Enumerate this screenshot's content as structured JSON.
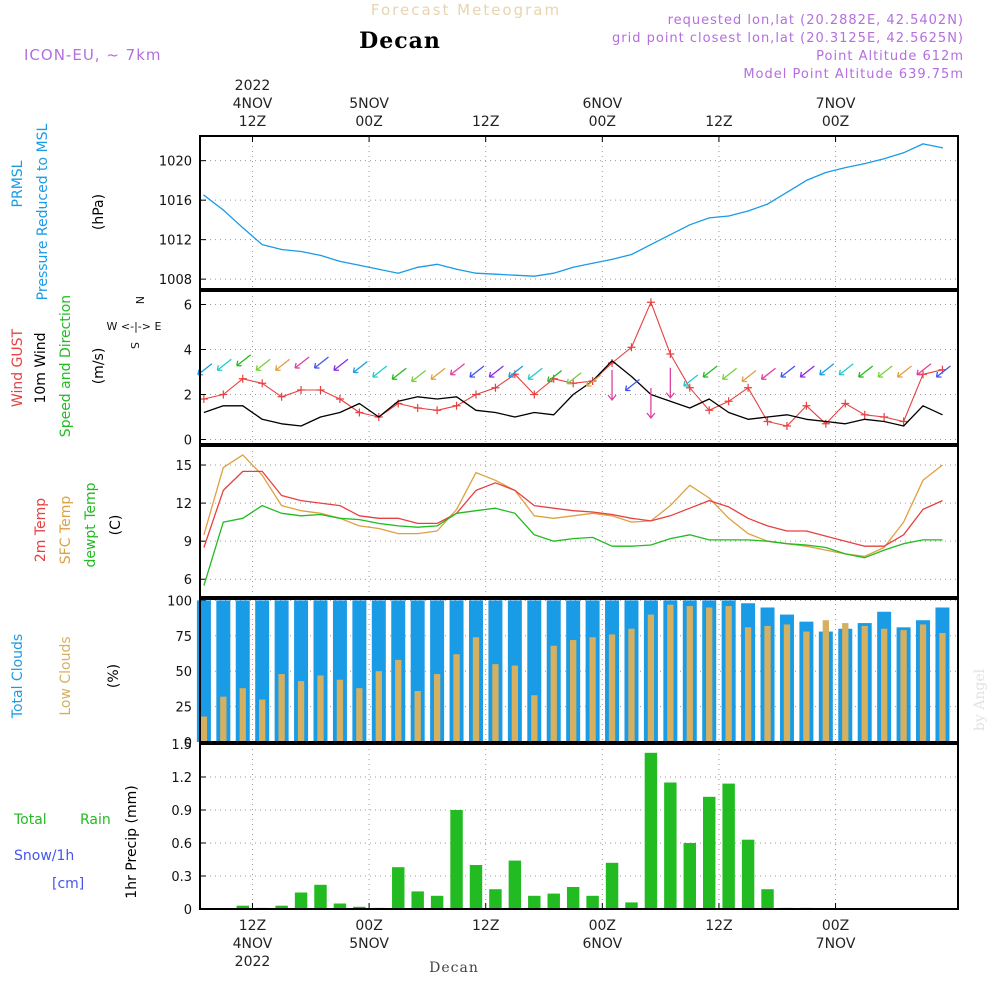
{
  "header": {
    "title": "Forecast Meteogram",
    "station": "Decan",
    "model": "ICON-EU, ~ 7km",
    "requested": "requested lon,lat (20.2882E, 42.5402N)",
    "grid_point": "grid point closest lon,lat (20.3125E, 42.5625N)",
    "point_altitude": "Point Altitude 612m",
    "model_altitude": "Model Point Altitude 639.75m"
  },
  "footer": {
    "station": "Decan",
    "credit": "by Angel"
  },
  "colors": {
    "pressure": "#1a9be6",
    "gust": "#e84040",
    "wind": "#000000",
    "wind_dir": "#22bb22",
    "temp2m": "#e84040",
    "sfctemp": "#dfa040",
    "dewpoint": "#22bb22",
    "total_clouds": "#1a9be6",
    "low_clouds": "#d4b060",
    "rain": "#22bb22",
    "snow": "#4455ee",
    "compass": "#b46ee0"
  },
  "time_axis": {
    "top": [
      {
        "x": -0.5,
        "lines": [
          "2022",
          "4NOV",
          "12Z"
        ]
      },
      {
        "x": 5.5,
        "lines": [
          "",
          "5NOV",
          "00Z"
        ]
      },
      {
        "x": 11.5,
        "lines": [
          "",
          "",
          "12Z"
        ]
      },
      {
        "x": 17.5,
        "lines": [
          "",
          "6NOV",
          "00Z"
        ]
      },
      {
        "x": 23.5,
        "lines": [
          "",
          "",
          "12Z"
        ]
      },
      {
        "x": 29.5,
        "lines": [
          "",
          "7NOV",
          "00Z"
        ]
      }
    ],
    "bottom": [
      {
        "x": -0.5,
        "lines": [
          "12Z",
          "4NOV",
          "2022"
        ]
      },
      {
        "x": 5.5,
        "lines": [
          "00Z",
          "5NOV",
          ""
        ]
      },
      {
        "x": 11.5,
        "lines": [
          "12Z",
          "",
          ""
        ]
      },
      {
        "x": 17.5,
        "lines": [
          "00Z",
          "6NOV",
          ""
        ]
      },
      {
        "x": 23.5,
        "lines": [
          "12Z",
          "",
          ""
        ]
      },
      {
        "x": 29.5,
        "lines": [
          "00Z",
          "7NOV",
          ""
        ]
      }
    ]
  },
  "labels": {
    "pressure": [
      "PRMSL",
      "Pressure Reduced to MSL",
      "(hPa)"
    ],
    "wind": [
      "Wind GUST",
      "10m Wind",
      "Speed and Direction",
      "(m/s)"
    ],
    "compass": [
      "N",
      "W <-|-> E",
      "S"
    ],
    "temp": [
      "2m Temp",
      "SFC Temp",
      "dewpt Temp",
      "(C)"
    ],
    "clouds": [
      "Total Clouds",
      "Low Clouds",
      "(%)"
    ],
    "precip": [
      "Total",
      "Rain",
      "Snow/1h",
      "[cm]",
      "1hr Precip (mm)"
    ]
  },
  "chart_data": [
    {
      "type": "line",
      "title": "PRMSL Pressure Reduced to MSL",
      "ylabel": "(hPa)",
      "ylim": [
        1007,
        1022.5
      ],
      "yticks": [
        1008,
        1012,
        1016,
        1020
      ],
      "x_units": "hours since 4NOV 12Z",
      "series": [
        {
          "name": "PRMSL",
          "x": [
            -3,
            -2,
            -1,
            0,
            1,
            2,
            3,
            4,
            5,
            6,
            7,
            8,
            9,
            10,
            11,
            12,
            13,
            14,
            15,
            16,
            17,
            18,
            19,
            20,
            21,
            22,
            23,
            24,
            25,
            26,
            27,
            28,
            29,
            30,
            31,
            32,
            33,
            34,
            35
          ],
          "values": [
            1016.5,
            1015.0,
            1013.2,
            1011.5,
            1011.0,
            1010.8,
            1010.4,
            1009.8,
            1009.4,
            1009.0,
            1008.6,
            1009.2,
            1009.5,
            1009.0,
            1008.6,
            1008.5,
            1008.4,
            1008.3,
            1008.6,
            1009.2,
            1009.6,
            1010.0,
            1010.5,
            1011.5,
            1012.5,
            1013.5,
            1014.2,
            1014.4,
            1014.9,
            1015.6,
            1016.8,
            1018.0,
            1018.8,
            1019.3,
            1019.7,
            1020.2,
            1020.8,
            1021.7,
            1021.3
          ]
        }
      ]
    },
    {
      "type": "line",
      "title": "Wind GUST / 10m Wind Speed and Direction",
      "ylabel": "(m/s)",
      "ylim": [
        -0.2,
        6.6
      ],
      "yticks": [
        0,
        2,
        4,
        6
      ],
      "x_units": "hours since 4NOV 12Z",
      "series": [
        {
          "name": "Wind GUST",
          "x": [
            -3,
            -2,
            -1,
            0,
            1,
            2,
            3,
            4,
            5,
            6,
            7,
            8,
            9,
            10,
            11,
            12,
            13,
            14,
            15,
            16,
            17,
            18,
            19,
            20,
            21,
            22,
            23,
            24,
            25,
            26,
            27,
            28,
            29,
            30,
            31,
            32,
            33,
            34,
            35
          ],
          "values": [
            1.8,
            2.0,
            2.7,
            2.5,
            1.9,
            2.2,
            2.2,
            1.8,
            1.2,
            1.0,
            1.6,
            1.4,
            1.3,
            1.5,
            2.0,
            2.3,
            2.9,
            2.0,
            2.7,
            2.5,
            2.6,
            3.4,
            4.1,
            6.1,
            3.8,
            2.3,
            1.3,
            1.7,
            2.3,
            0.8,
            0.6,
            1.5,
            0.7,
            1.6,
            1.1,
            1.0,
            0.8,
            2.9,
            3.1
          ]
        },
        {
          "name": "10m Wind",
          "x": [
            -3,
            -2,
            -1,
            0,
            1,
            2,
            3,
            4,
            5,
            6,
            7,
            8,
            9,
            10,
            11,
            12,
            13,
            14,
            15,
            16,
            17,
            18,
            19,
            20,
            21,
            22,
            23,
            24,
            25,
            26,
            27,
            28,
            29,
            30,
            31,
            32,
            33,
            34,
            35
          ],
          "values": [
            1.2,
            1.5,
            1.5,
            0.9,
            0.7,
            0.6,
            1.0,
            1.2,
            1.6,
            1.0,
            1.7,
            1.9,
            1.8,
            1.9,
            1.3,
            1.2,
            1.0,
            1.2,
            1.1,
            2.0,
            2.6,
            3.5,
            2.8,
            2.0,
            1.7,
            1.4,
            1.8,
            1.2,
            0.9,
            1.0,
            1.1,
            0.9,
            0.8,
            0.7,
            0.9,
            0.8,
            0.6,
            1.5,
            1.1
          ]
        },
        {
          "name": "Direction",
          "x": [
            -3,
            -2,
            -1,
            0,
            1,
            2,
            3,
            4,
            5,
            6,
            7,
            8,
            9,
            10,
            11,
            12,
            13,
            14,
            15,
            16,
            17,
            18,
            19,
            20,
            21,
            22,
            23,
            24,
            25,
            26,
            27,
            28,
            29,
            30,
            31,
            32,
            33,
            34,
            35
          ],
          "values": [
            3.1,
            3.3,
            3.5,
            3.3,
            3.3,
            3.4,
            3.4,
            3.3,
            3.2,
            3.0,
            2.9,
            2.8,
            2.9,
            3.1,
            3.0,
            3.0,
            3.0,
            2.9,
            2.8,
            2.7,
            2.6,
            2.2,
            2.4,
            1.4,
            2.3,
            2.6,
            3.0,
            2.9,
            2.8,
            2.9,
            3.0,
            3.0,
            3.1,
            3.1,
            3.0,
            3.0,
            3.0,
            3.1,
            3.0
          ]
        }
      ]
    },
    {
      "type": "line",
      "title": "2m Temp / SFC Temp / dewpt Temp",
      "ylabel": "(C)",
      "ylim": [
        4.6,
        16.5
      ],
      "yticks": [
        6,
        9,
        12,
        15
      ],
      "x_units": "hours since 4NOV 12Z",
      "series": [
        {
          "name": "2m Temp",
          "x": [
            -3,
            -2,
            -1,
            0,
            1,
            2,
            3,
            4,
            5,
            6,
            7,
            8,
            9,
            10,
            11,
            12,
            13,
            14,
            15,
            16,
            17,
            18,
            19,
            20,
            21,
            22,
            23,
            24,
            25,
            26,
            27,
            28,
            29,
            30,
            31,
            32,
            33,
            34,
            35
          ],
          "values": [
            8.5,
            13.0,
            14.5,
            14.5,
            12.6,
            12.2,
            12.0,
            11.8,
            11.0,
            10.8,
            10.8,
            10.4,
            10.4,
            11.2,
            13.0,
            13.6,
            13.0,
            11.8,
            11.6,
            11.4,
            11.3,
            11.1,
            10.8,
            10.6,
            11.0,
            11.6,
            12.2,
            11.7,
            10.8,
            10.2,
            9.8,
            9.8,
            9.4,
            9.0,
            8.6,
            8.6,
            9.5,
            11.5,
            12.2
          ]
        },
        {
          "name": "SFC Temp",
          "x": [
            -3,
            -2,
            -1,
            0,
            1,
            2,
            3,
            4,
            5,
            6,
            7,
            8,
            9,
            10,
            11,
            12,
            13,
            14,
            15,
            16,
            17,
            18,
            19,
            20,
            21,
            22,
            23,
            24,
            25,
            26,
            27,
            28,
            29,
            30,
            31,
            32,
            33,
            34,
            35
          ],
          "values": [
            9.5,
            14.8,
            15.8,
            14.2,
            11.8,
            11.4,
            11.2,
            10.8,
            10.2,
            10.0,
            9.6,
            9.6,
            9.8,
            11.5,
            14.4,
            13.8,
            13.0,
            11.0,
            10.8,
            11.0,
            11.2,
            11.0,
            10.5,
            10.6,
            11.8,
            13.4,
            12.4,
            10.8,
            9.6,
            9.0,
            8.8,
            8.6,
            8.3,
            8.0,
            7.8,
            8.5,
            10.5,
            13.8,
            15.0
          ]
        },
        {
          "name": "dewpt Temp",
          "x": [
            -3,
            -2,
            -1,
            0,
            1,
            2,
            3,
            4,
            5,
            6,
            7,
            8,
            9,
            10,
            11,
            12,
            13,
            14,
            15,
            16,
            17,
            18,
            19,
            20,
            21,
            22,
            23,
            24,
            25,
            26,
            27,
            28,
            29,
            30,
            31,
            32,
            33,
            34,
            35
          ],
          "values": [
            5.5,
            10.5,
            10.8,
            11.8,
            11.2,
            11.0,
            11.1,
            10.8,
            10.7,
            10.4,
            10.2,
            10.1,
            10.2,
            11.2,
            11.4,
            11.6,
            11.2,
            9.5,
            9.0,
            9.2,
            9.3,
            8.6,
            8.6,
            8.7,
            9.2,
            9.5,
            9.1,
            9.1,
            9.1,
            9.0,
            8.8,
            8.7,
            8.5,
            8.0,
            7.7,
            8.3,
            8.8,
            9.1,
            9.1
          ]
        }
      ]
    },
    {
      "type": "bar",
      "title": "Total Clouds / Low Clouds",
      "ylabel": "(%)",
      "ylim": [
        0,
        101
      ],
      "yticks": [
        0,
        25,
        50,
        75,
        100
      ],
      "x_units": "hours since 4NOV 12Z",
      "series": [
        {
          "name": "Total Clouds",
          "x": [
            -3,
            -2,
            -1,
            0,
            1,
            2,
            3,
            4,
            5,
            6,
            7,
            8,
            9,
            10,
            11,
            12,
            13,
            14,
            15,
            16,
            17,
            18,
            19,
            20,
            21,
            22,
            23,
            24,
            25,
            26,
            27,
            28,
            29,
            30,
            31,
            32,
            33,
            34,
            35
          ],
          "values": [
            100,
            100,
            100,
            100,
            100,
            100,
            100,
            100,
            100,
            100,
            100,
            100,
            100,
            100,
            100,
            100,
            100,
            100,
            100,
            100,
            100,
            100,
            100,
            100,
            100,
            100,
            100,
            100,
            98,
            95,
            90,
            85,
            78,
            80,
            84,
            92,
            81,
            86,
            95
          ]
        },
        {
          "name": "Low Clouds",
          "x": [
            -3,
            -2,
            -1,
            0,
            1,
            2,
            3,
            4,
            5,
            6,
            7,
            8,
            9,
            10,
            11,
            12,
            13,
            14,
            15,
            16,
            17,
            18,
            19,
            20,
            21,
            22,
            23,
            24,
            25,
            26,
            27,
            28,
            29,
            30,
            31,
            32,
            33,
            34,
            35
          ],
          "values": [
            18,
            32,
            38,
            30,
            48,
            43,
            47,
            44,
            38,
            50,
            58,
            36,
            48,
            62,
            74,
            55,
            54,
            33,
            68,
            72,
            74,
            76,
            80,
            90,
            97,
            96,
            95,
            96,
            81,
            82,
            83,
            78,
            86,
            84,
            82,
            80,
            79,
            83,
            77
          ]
        }
      ]
    },
    {
      "type": "bar",
      "title": "Total Rain / Snow/1h",
      "ylabel": "1hr Precip (mm)",
      "ylim": [
        0,
        1.5
      ],
      "yticks": [
        0,
        0.3,
        0.6,
        0.9,
        1.2,
        1.5
      ],
      "x_units": "hours since 4NOV 12Z",
      "series": [
        {
          "name": "Total Rain",
          "x": [
            -3,
            -2,
            -1,
            0,
            1,
            2,
            3,
            4,
            5,
            6,
            7,
            8,
            9,
            10,
            11,
            12,
            13,
            14,
            15,
            16,
            17,
            18,
            19,
            20,
            21,
            22,
            23,
            24,
            25,
            26,
            27,
            28,
            29,
            30,
            31,
            32,
            33,
            34,
            35
          ],
          "values": [
            0,
            0,
            0.03,
            0.01,
            0.03,
            0.15,
            0.22,
            0.05,
            0.02,
            0.01,
            0.38,
            0.16,
            0.12,
            0.9,
            0.4,
            0.18,
            0.44,
            0.12,
            0.14,
            0.2,
            0.12,
            0.42,
            0.06,
            1.42,
            1.15,
            0.6,
            1.02,
            1.14,
            0.63,
            0.18,
            0.01,
            0.01,
            0,
            0,
            0,
            0,
            0,
            0,
            0
          ]
        },
        {
          "name": "Snow/1h",
          "x": [
            -3,
            -2,
            -1,
            0,
            1,
            2,
            3,
            4,
            5,
            6,
            7,
            8,
            9,
            10,
            11,
            12,
            13,
            14,
            15,
            16,
            17,
            18,
            19,
            20,
            21,
            22,
            23,
            24,
            25,
            26,
            27,
            28,
            29,
            30,
            31,
            32,
            33,
            34,
            35
          ],
          "values": [
            0,
            0,
            0,
            0,
            0,
            0,
            0,
            0,
            0,
            0,
            0,
            0,
            0,
            0,
            0,
            0,
            0,
            0,
            0,
            0,
            0,
            0,
            0,
            0,
            0,
            0,
            0,
            0,
            0,
            0,
            0,
            0,
            0,
            0,
            0,
            0,
            0,
            0,
            0
          ]
        }
      ]
    }
  ]
}
